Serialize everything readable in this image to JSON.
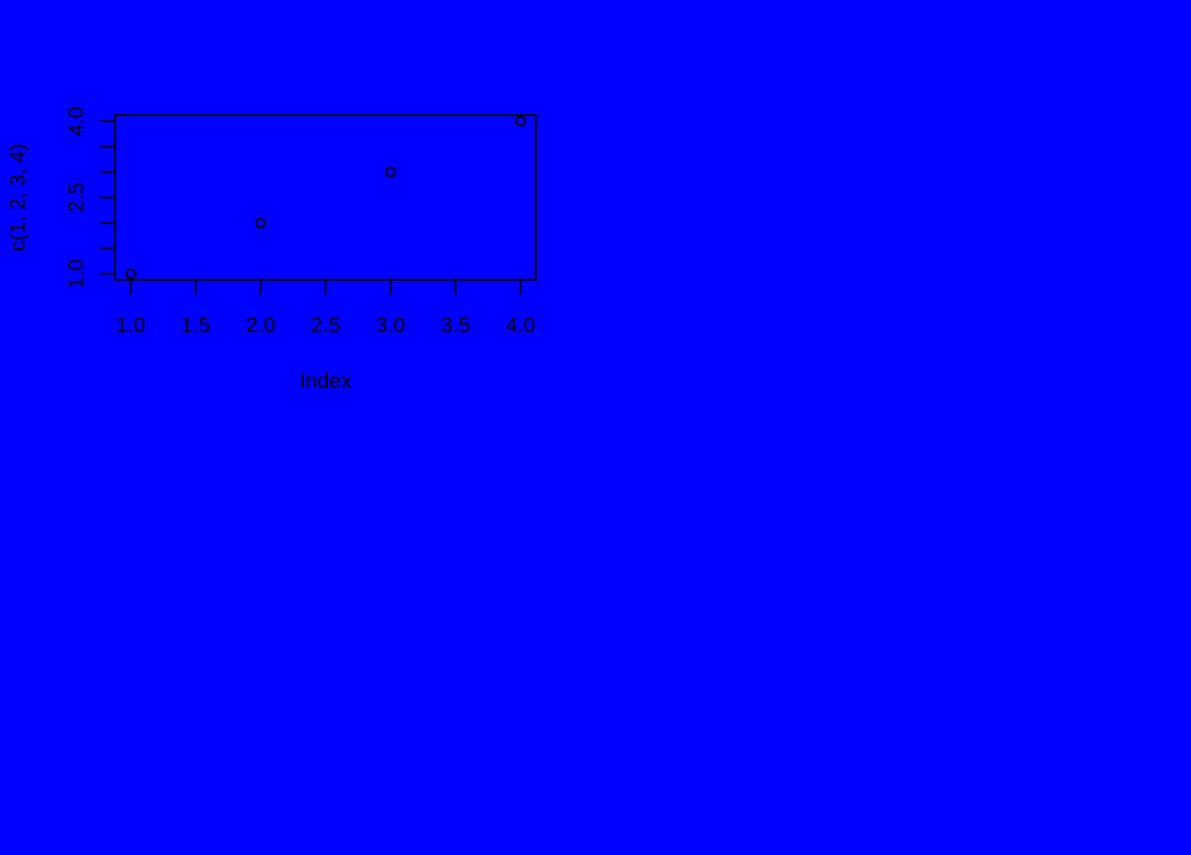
{
  "background_color": "#0000ff",
  "foreground_color": "#000000",
  "chart_data": {
    "type": "scatter",
    "title": "",
    "xlabel": "Index",
    "ylabel": "c(1, 2, 3, 4)",
    "x": [
      1,
      2,
      3,
      4
    ],
    "y": [
      1,
      2,
      3,
      4
    ],
    "xlim": [
      0.88,
      4.12
    ],
    "ylim": [
      0.88,
      4.12
    ],
    "x_ticks": [
      1.0,
      1.5,
      2.0,
      2.5,
      3.0,
      3.5,
      4.0
    ],
    "x_tick_labels": [
      "1.0",
      "1.5",
      "2.0",
      "2.5",
      "3.0",
      "3.5",
      "4.0"
    ],
    "y_ticks": [
      1.0,
      1.5,
      2.0,
      2.5,
      3.0,
      3.5,
      4.0
    ],
    "y_tick_labels": [
      "1.0",
      "",
      "",
      "2.5",
      "",
      "",
      "4.0"
    ],
    "marker": "open-circle",
    "grid": false,
    "legend": "none"
  }
}
